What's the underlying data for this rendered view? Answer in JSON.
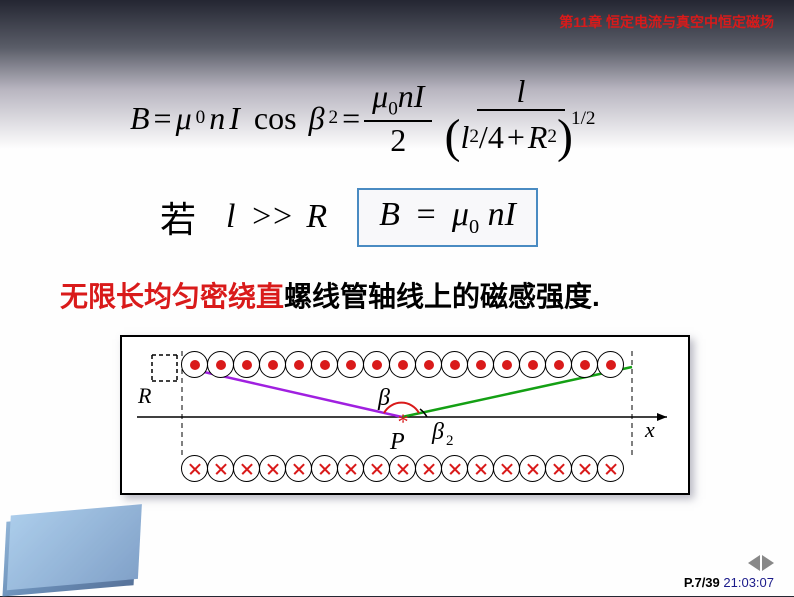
{
  "chapter": "第11章  恒定电流与真空中恒定磁场",
  "eq1": {
    "B": "B",
    "eq": "=",
    "mu": "μ",
    "zero": "0",
    "n": "n",
    "I": "I",
    "cos": "cos",
    "beta": "β",
    "two": "2",
    "l": "l",
    "four": "4",
    "plus": "+",
    "R": "R",
    "half": "1/2",
    "slash": "/"
  },
  "eq2": {
    "ruo": "若",
    "l": "l",
    "gg": ">>",
    "R": "R",
    "B": "B",
    "eq": "=",
    "mu": "μ",
    "zero": "0",
    "n": "n",
    "I": "I"
  },
  "desc": {
    "red": "无限长均匀密绕直",
    "black": "螺线管轴线上的磁感强度."
  },
  "diagram": {
    "R": "R",
    "beta": "β",
    "beta2_sub": "2",
    "P": "P",
    "x": "x",
    "n_circles": 17,
    "colors": {
      "purple": "#a020e0",
      "green": "#14a014",
      "red": "#d91a1a",
      "axis": "#000000",
      "dash": "#000000"
    },
    "fontsize_labels": 22
  },
  "footer": {
    "page": "P.7/39",
    "time": " 21:03:07"
  }
}
